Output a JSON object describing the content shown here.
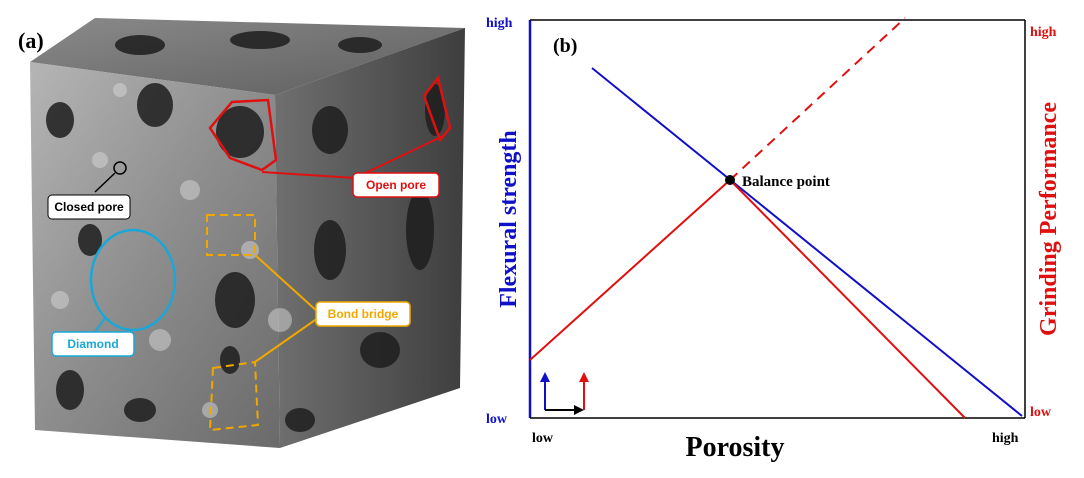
{
  "panel_a": {
    "label": "(a)",
    "annotations": {
      "closed_pore": "Closed pore",
      "open_pore": "Open pore",
      "bond_bridge": "Bond bridge",
      "diamond": "Diamond"
    }
  },
  "panel_b": {
    "label": "(b)",
    "x_axis": {
      "title": "Porosity",
      "low": "low",
      "high": "high"
    },
    "y_axis_left": {
      "title": "Flexural strength",
      "high": "high",
      "low": "low"
    },
    "y_axis_right": {
      "title": "Grinding Performance",
      "high": "high",
      "low": "low"
    },
    "annotation": "Balance point"
  }
}
